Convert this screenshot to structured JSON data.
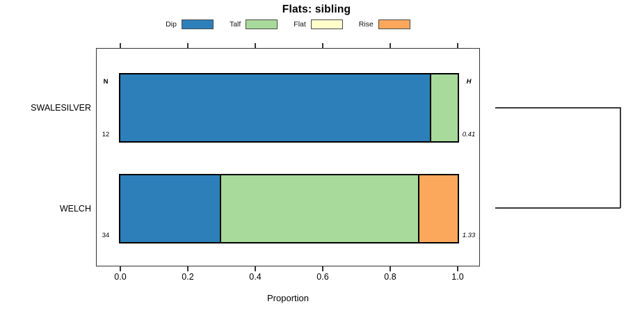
{
  "title": "Flats: sibling",
  "colors": {
    "dip": "#2c7fb9",
    "talf": "#a8da9b",
    "flat": "#ffffcc",
    "rise": "#fba85c",
    "axis": "#333333",
    "bar_border": "#000000"
  },
  "legend": {
    "items": [
      {
        "key": "dip",
        "label": "Dip"
      },
      {
        "key": "talf",
        "label": "Talf"
      },
      {
        "key": "flat",
        "label": "Flat"
      },
      {
        "key": "rise",
        "label": "Rise"
      }
    ]
  },
  "chart_data": {
    "type": "bar",
    "orientation": "horizontal",
    "stacked": true,
    "normalized": true,
    "title": "Flats: sibling",
    "xlabel": "Proportion",
    "xlim": [
      0,
      1
    ],
    "xticks": [
      0,
      0.2,
      0.4,
      0.6,
      0.8,
      1
    ],
    "xtick_labels": [
      "0.0",
      "0.2",
      "0.4",
      "0.6",
      "0.8",
      "1.0"
    ],
    "grid": false,
    "legend_position": "top",
    "categories": [
      "SWALESILVER",
      "WELCH"
    ],
    "series": [
      {
        "name": "Dip",
        "color": "#2c7fb9",
        "values": [
          0.917,
          0.294
        ]
      },
      {
        "name": "Talf",
        "color": "#a8da9b",
        "values": [
          0.083,
          0.588
        ]
      },
      {
        "name": "Flat",
        "color": "#ffffcc",
        "values": [
          0,
          0
        ]
      },
      {
        "name": "Rise",
        "color": "#fba85c",
        "values": [
          0,
          0.118
        ]
      }
    ],
    "annotations": {
      "left_header": "N",
      "right_header": "H",
      "rows": [
        {
          "category": "SWALESILVER",
          "n": "12",
          "h": "0.41"
        },
        {
          "category": "WELCH",
          "n": "34",
          "h": "1.33"
        }
      ]
    },
    "right_dendrogram": {
      "rows_joined": [
        "SWALESILVER",
        "WELCH"
      ]
    }
  }
}
